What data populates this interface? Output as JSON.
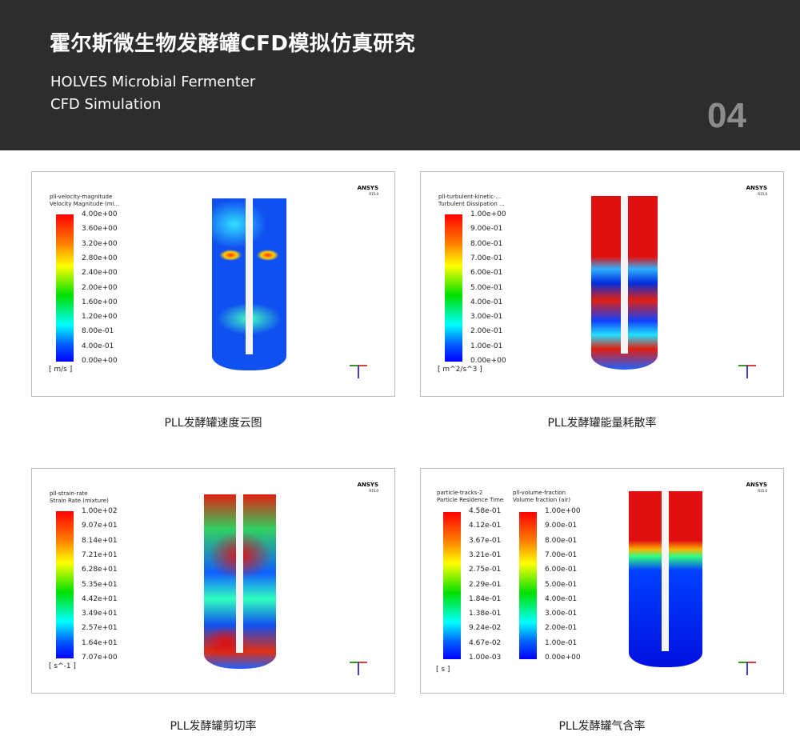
{
  "header": {
    "title": "霍尔斯微生物发酵罐CFD模拟仿真研究",
    "subtitle_line1": "HOLVES Microbial Fermenter",
    "subtitle_line2": "CFD Simulation",
    "number": "04"
  },
  "panels": [
    {
      "caption": "PLL发酵罐速度云图",
      "brand": "ANSYS",
      "version": "R15.0",
      "legends": [
        {
          "title1": "pll-velocity-magnitude",
          "title2": "Velocity Magnitude (mi...",
          "unit": "[ m/s ]",
          "ticks": [
            "4.00e+00",
            "3.60e+00",
            "3.20e+00",
            "2.80e+00",
            "2.40e+00",
            "2.00e+00",
            "1.60e+00",
            "1.20e+00",
            "8.00e-01",
            "4.00e-01",
            "0.00e+00"
          ]
        }
      ]
    },
    {
      "caption": "PLL发酵罐能量耗散率",
      "brand": "ANSYS",
      "version": "R15.0",
      "legends": [
        {
          "title1": "pll-turbulent-kinetic-...",
          "title2": "Turbulent Dissipation ...",
          "unit": "[ m^2/s^3 ]",
          "ticks": [
            "1.00e+00",
            "9.00e-01",
            "8.00e-01",
            "7.00e-01",
            "6.00e-01",
            "5.00e-01",
            "4.00e-01",
            "3.00e-01",
            "2.00e-01",
            "1.00e-01",
            "0.00e+00"
          ]
        }
      ]
    },
    {
      "caption": "PLL发酵罐剪切率",
      "brand": "ANSYS",
      "version": "R15.0",
      "legends": [
        {
          "title1": "pll-strain-rate",
          "title2": "Strain Rate (mixture)",
          "unit": "[ s^-1 ]",
          "ticks": [
            "1.00e+02",
            "9.07e+01",
            "8.14e+01",
            "7.21e+01",
            "6.28e+01",
            "5.35e+01",
            "4.42e+01",
            "3.49e+01",
            "2.57e+01",
            "1.64e+01",
            "7.07e+00"
          ]
        }
      ]
    },
    {
      "caption": "PLL发酵罐气含率",
      "brand": "ANSYS",
      "version": "R15.0",
      "legends": [
        {
          "title1": "particle-tracks-2",
          "title2": "Particle Residence Time",
          "unit": "[ s ]",
          "ticks": [
            "4.58e-01",
            "4.12e-01",
            "3.67e-01",
            "3.21e-01",
            "2.75e-01",
            "2.29e-01",
            "1.84e-01",
            "1.38e-01",
            "9.24e-02",
            "4.67e-02",
            "1.00e-03"
          ]
        },
        {
          "title1": "pll-volume-fraction",
          "title2": "Volume fraction (air)",
          "unit": "",
          "ticks": [
            "1.00e+00",
            "9.00e-01",
            "8.00e-01",
            "7.00e-01",
            "6.00e-01",
            "5.00e-01",
            "4.00e-01",
            "3.00e-01",
            "2.00e-01",
            "1.00e-01",
            "0.00e+00"
          ]
        }
      ]
    }
  ]
}
